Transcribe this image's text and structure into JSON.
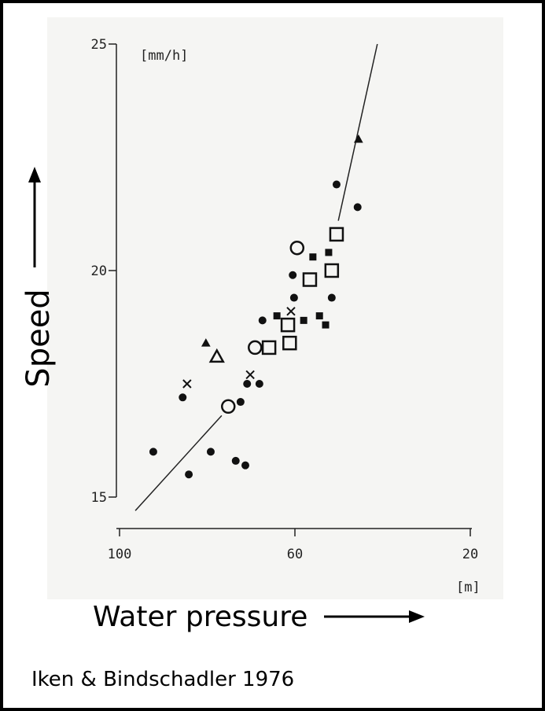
{
  "chart_data": {
    "type": "scatter",
    "ylabel": "Speed",
    "xlabel": "Water pressure",
    "y_unit": "[mm/h]",
    "x_unit": "[m]",
    "source": "Iken & Bindschadler 1976",
    "xlim": [
      100,
      20
    ],
    "ylim": [
      15,
      25
    ],
    "xticks": [
      100,
      60,
      20
    ],
    "yticks": [
      15,
      20,
      25
    ],
    "series": [
      {
        "marker": "circle",
        "filled": true,
        "color": "#111111",
        "x": [
          92.3,
          85.6,
          84.2,
          79.2,
          73.5,
          71.3,
          72.4,
          70.9,
          68.1,
          67.4,
          60.5,
          60.2,
          51.6,
          45.7,
          50.5
        ],
        "y": [
          16.0,
          17.2,
          15.5,
          16.0,
          15.8,
          15.7,
          17.1,
          17.5,
          17.5,
          18.9,
          19.9,
          19.4,
          19.4,
          21.4,
          21.9
        ]
      },
      {
        "marker": "circle",
        "filled": false,
        "color": "#111111",
        "x": [
          59.5,
          69.1,
          75.2
        ],
        "y": [
          20.5,
          18.3,
          17.0
        ]
      },
      {
        "marker": "square",
        "filled": false,
        "color": "#111111",
        "x": [
          50.5,
          51.6,
          56.6,
          61.6,
          61.2,
          65.9
        ],
        "y": [
          20.8,
          20.0,
          19.8,
          18.8,
          18.4,
          18.3
        ]
      },
      {
        "marker": "square",
        "filled": true,
        "color": "#111111",
        "x": [
          55.9,
          52.3,
          54.4,
          53.0,
          58.0,
          64.1
        ],
        "y": [
          20.3,
          20.4,
          19.0,
          18.8,
          18.9,
          19.0
        ]
      },
      {
        "marker": "cross",
        "filled": false,
        "color": "#111111",
        "x": [
          84.6,
          70.2,
          60.9
        ],
        "y": [
          17.5,
          17.7,
          19.1
        ]
      },
      {
        "marker": "triangle",
        "filled": false,
        "color": "#111111",
        "x": [
          77.8
        ],
        "y": [
          18.1
        ]
      },
      {
        "marker": "triangle",
        "filled": true,
        "color": "#111111",
        "x": [
          80.3,
          45.5
        ],
        "y": [
          18.4,
          22.9
        ]
      }
    ],
    "lines": [
      {
        "x": [
          96.4,
          76.7
        ],
        "y": [
          14.7,
          16.8
        ]
      },
      {
        "x": [
          50.1,
          41.2
        ],
        "y": [
          21.1,
          25.0
        ]
      }
    ]
  }
}
